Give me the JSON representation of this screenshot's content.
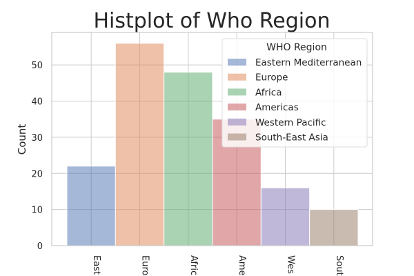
{
  "chart_data": {
    "type": "bar",
    "title": "Histplot of Who Region",
    "xlabel": "",
    "ylabel": "Count",
    "ylim": [
      0,
      59
    ],
    "yticks": [
      0,
      10,
      20,
      30,
      40,
      50
    ],
    "grid": true,
    "categories": [
      "Eastern Mediterranean",
      "Europe",
      "Africa",
      "Americas",
      "Western Pacific",
      "South-East Asia"
    ],
    "tick_labels": [
      "East",
      "Euro",
      "Afric",
      "Ame",
      "Wes",
      "Sout"
    ],
    "values": [
      22,
      56,
      48,
      35,
      16,
      10
    ],
    "colors": [
      "#4c72b0",
      "#dd8452",
      "#55a868",
      "#c44e52",
      "#8172b3",
      "#937860"
    ],
    "legend": {
      "title": "WHO Region",
      "placement": "top-right",
      "entries": [
        "Eastern Mediterranean",
        "Europe",
        "Africa",
        "Americas",
        "Western Pacific",
        "South-East Asia"
      ]
    }
  }
}
